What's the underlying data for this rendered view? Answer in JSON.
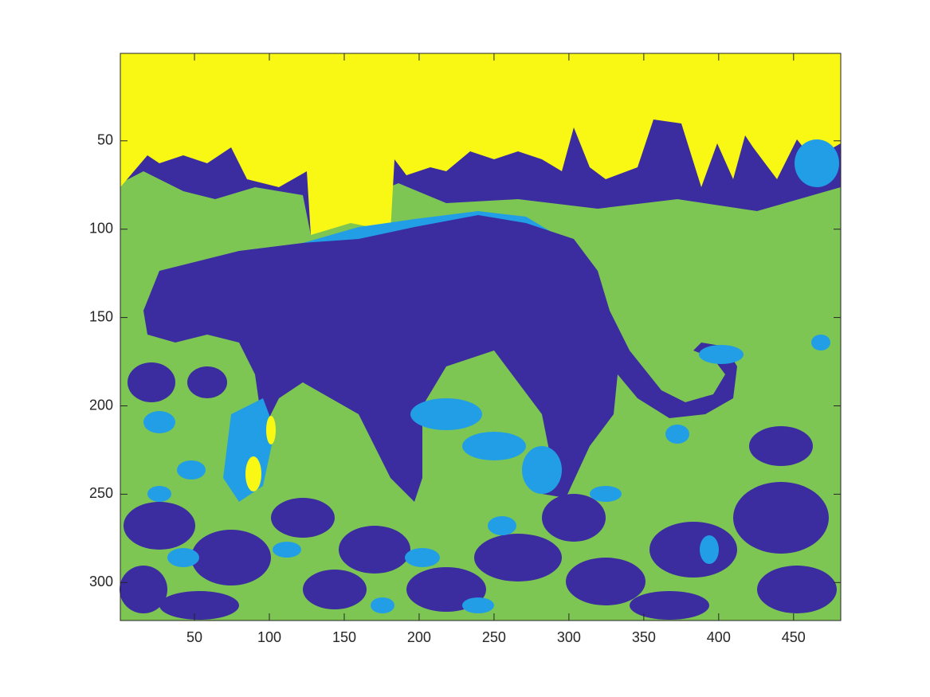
{
  "chart_data": {
    "type": "image",
    "xlim": [
      0.5,
      481.5
    ],
    "ylim": [
      0.5,
      321.5
    ],
    "y_reversed": true,
    "xticks": [
      50,
      100,
      150,
      200,
      250,
      300,
      350,
      400,
      450
    ],
    "yticks": [
      50,
      100,
      150,
      200,
      250,
      300
    ],
    "colormap": [
      "#3b2ca0",
      "#229ee6",
      "#7dc653",
      "#f8f814"
    ]
  }
}
